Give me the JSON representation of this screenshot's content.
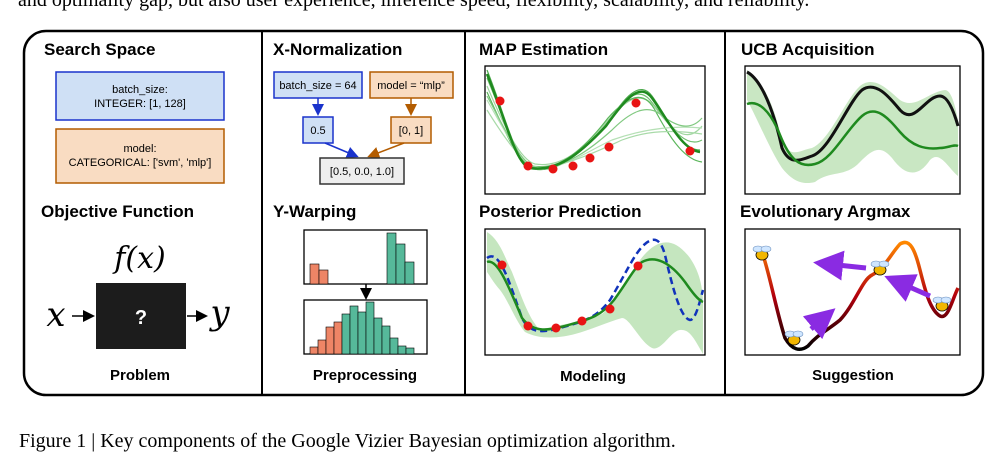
{
  "top_text": "and optimality gap, but also user experience, inference speed, flexibility, scalability, and reliability.",
  "caption": "Figure 1 | Key components of the Google Vizier Bayesian optimization algorithm.",
  "panels": {
    "problem": {
      "search_space_title": "Search Space",
      "param1_line1": "batch_size:",
      "param1_line2": "INTEGER: [1, 128]",
      "param2_line1": "model:",
      "param2_line2": "CATEGORICAL: ['svm', 'mlp']",
      "objective_title": "Objective Function",
      "fx": "f(x)",
      "x": "x",
      "y": "y",
      "box_symbol": "?",
      "label": "Problem"
    },
    "preprocessing": {
      "xnorm_title": "X-Normalization",
      "batch_box": "batch_size = 64",
      "model_box": "model = “mlp”",
      "norm_value": "0.5",
      "onehot_value": "[0, 1]",
      "result_value": "[0.5, 0.0, 1.0]",
      "ywarp_title": "Y-Warping",
      "label": "Preprocessing"
    },
    "modeling": {
      "map_title": "MAP Estimation",
      "posterior_title": "Posterior Prediction",
      "label": "Modeling"
    },
    "suggestion": {
      "ucb_title": "UCB Acquisition",
      "evo_title": "Evolutionary Argmax",
      "label": "Suggestion"
    }
  },
  "colors": {
    "blue_fill": "#cfe0f5",
    "blue_stroke": "#1a33cc",
    "orange_fill": "#f9dcc2",
    "orange_stroke": "#b35c00",
    "green": "#1f8a1f",
    "light_green": "#bfe3b8",
    "teal": "#56b99a",
    "salmon": "#ee8566",
    "red_point": "#e81414",
    "dash_blue": "#1133bb",
    "purple": "#8a2be2"
  }
}
